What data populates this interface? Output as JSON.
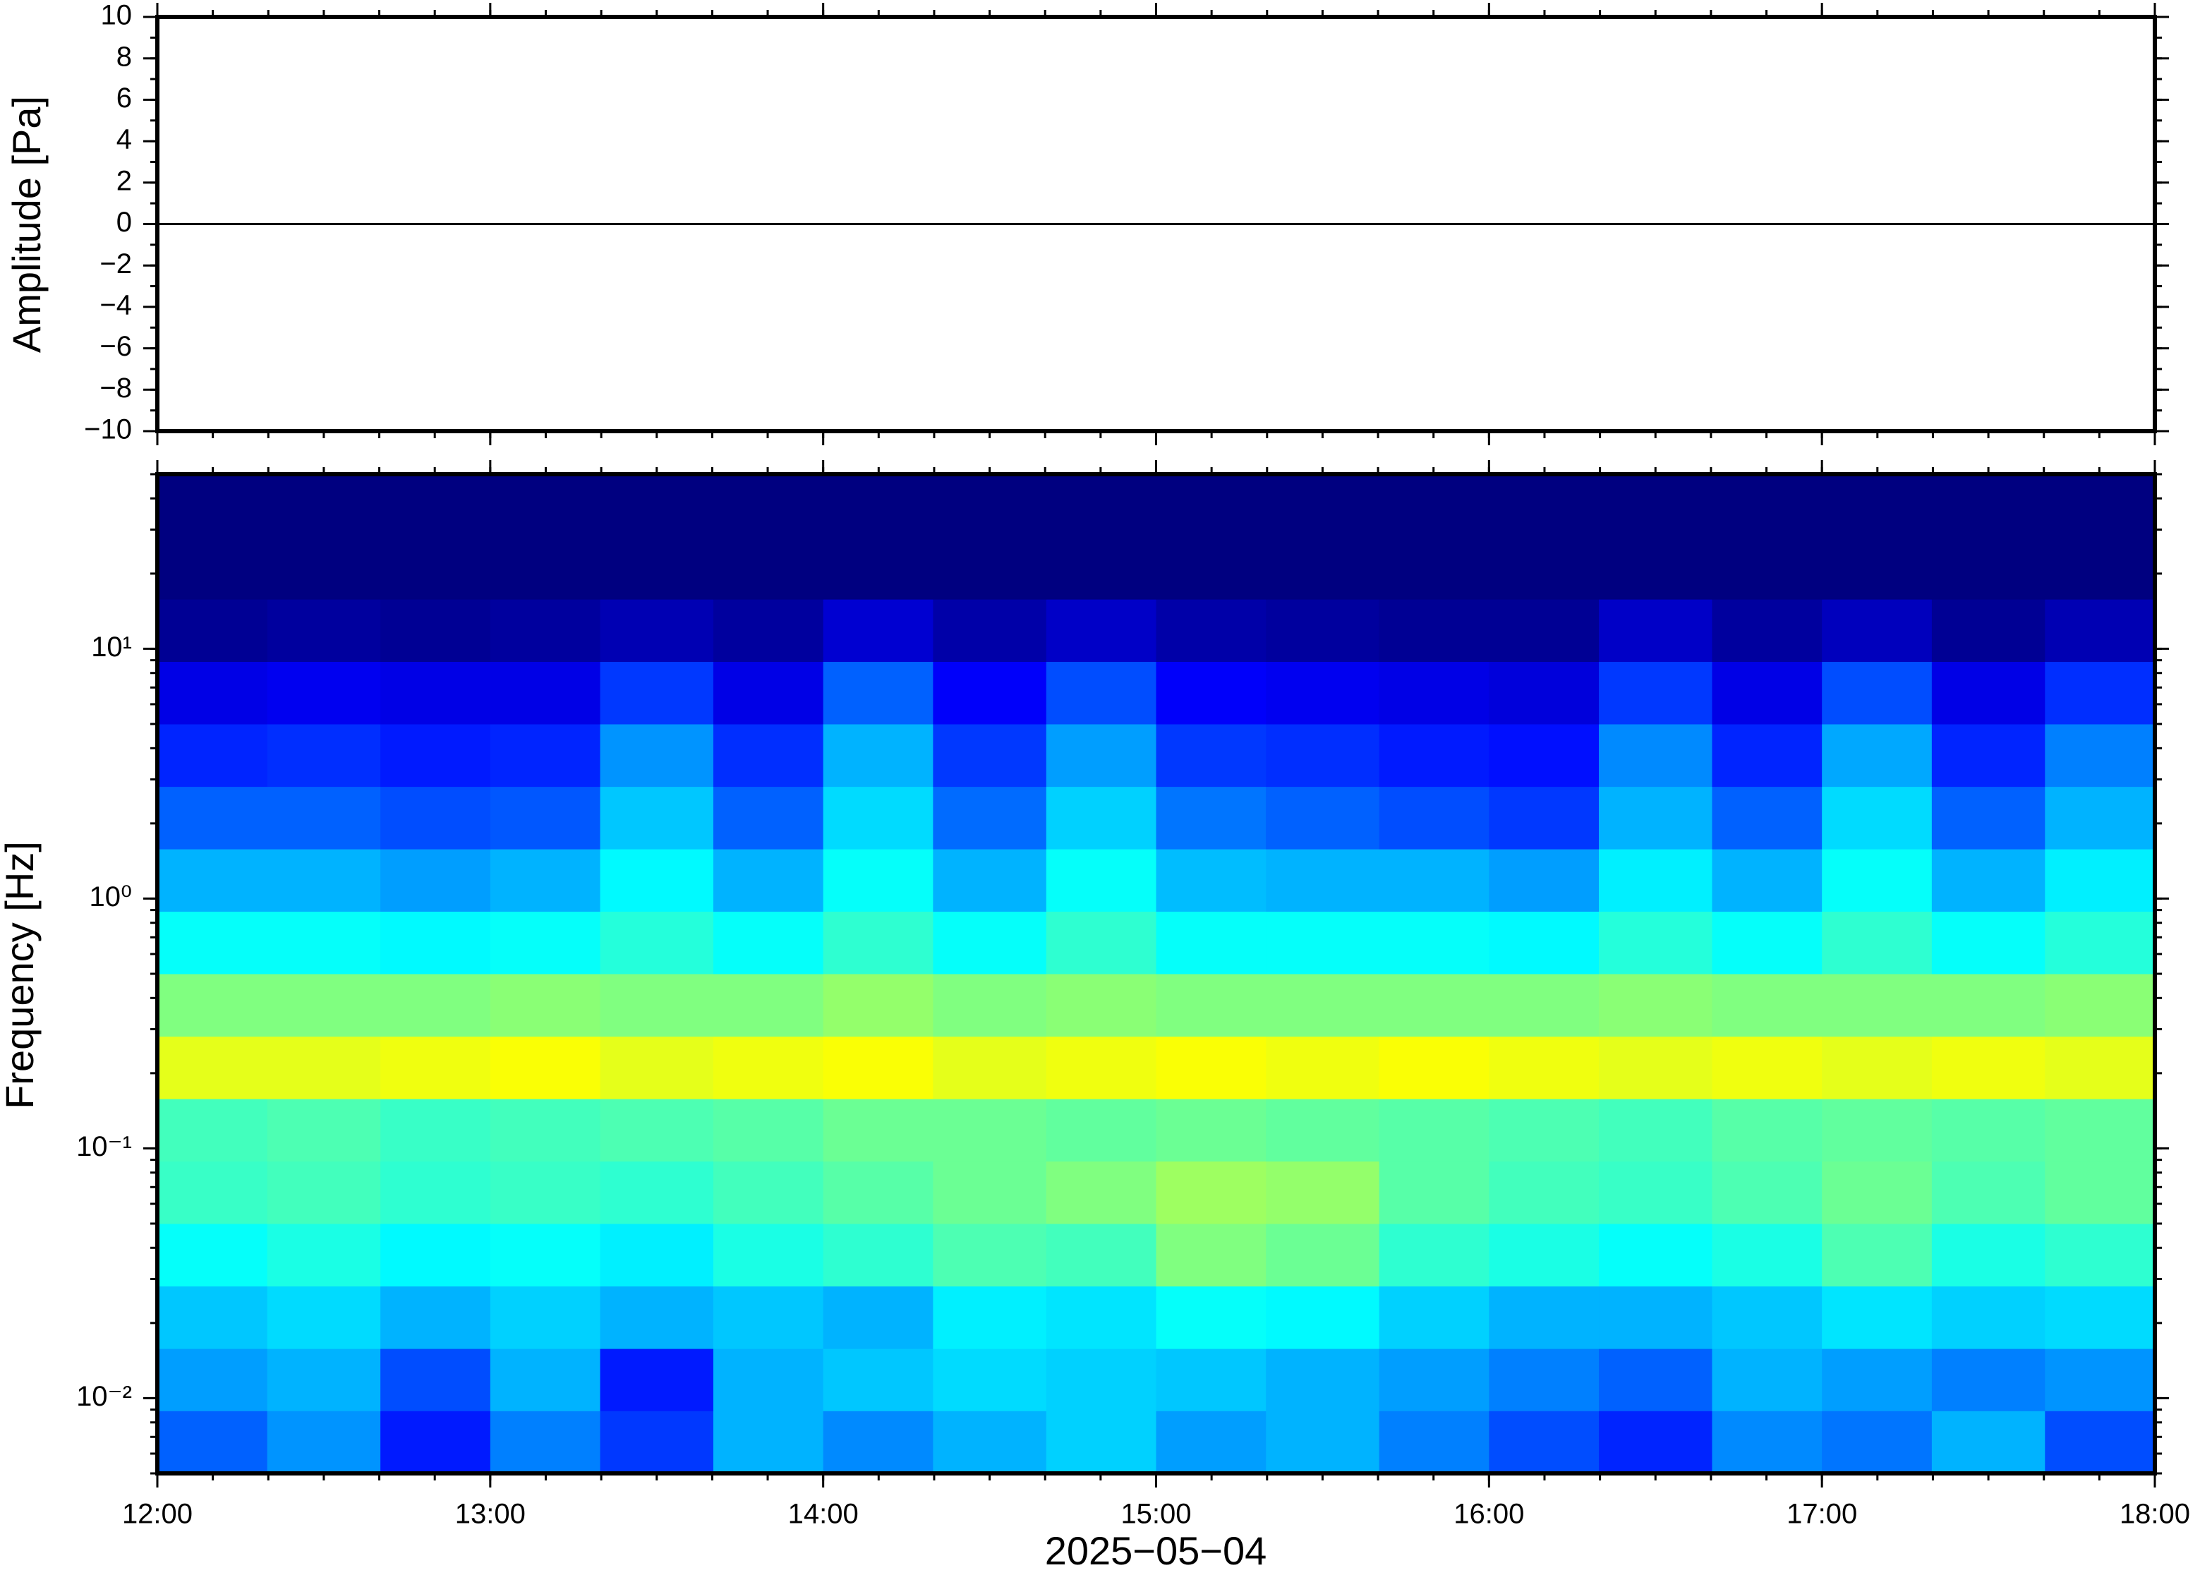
{
  "chart_data": [
    {
      "type": "line",
      "ylabel": "Amplitude [Pa]",
      "x": [
        12,
        13,
        14,
        15,
        16,
        17,
        18
      ],
      "series": [
        {
          "color": "#000000",
          "values": [
            0,
            0,
            0,
            0,
            0,
            0,
            0
          ]
        }
      ],
      "xlim": [
        12,
        18
      ],
      "xticks": [
        {
          "value": 12,
          "label": "12:00"
        },
        {
          "value": 13,
          "label": "13:00"
        },
        {
          "value": 14,
          "label": "14:00"
        },
        {
          "value": 15,
          "label": "15:00"
        },
        {
          "value": 16,
          "label": "16:00"
        },
        {
          "value": 17,
          "label": "17:00"
        },
        {
          "value": 18,
          "label": "18:00"
        }
      ],
      "ylim": [
        -10,
        10
      ],
      "yticks": [
        {
          "value": -10,
          "label": "−10"
        },
        {
          "value": -8,
          "label": "−8"
        },
        {
          "value": -6,
          "label": "−6"
        },
        {
          "value": -4,
          "label": "−4"
        },
        {
          "value": -2,
          "label": "−2"
        },
        0,
        2,
        4,
        6,
        8,
        10
      ]
    },
    {
      "type": "heatmap",
      "ylabel": "Frequency [Hz]",
      "xlabel": "2025−05−04",
      "colormap": "jet",
      "log_y": true,
      "xbins": [
        12,
        12.33,
        12.67,
        13,
        13.33,
        13.67,
        14,
        14.33,
        14.67,
        15,
        15.33,
        15.67,
        16,
        16.33,
        16.67,
        17,
        17.33,
        17.67,
        18
      ],
      "ybins": [
        0.005,
        0.0089,
        0.0158,
        0.0281,
        0.05,
        0.0889,
        0.158,
        0.281,
        0.5,
        0.889,
        1.58,
        2.81,
        5,
        8.89,
        15.8,
        28.1,
        50
      ],
      "z": [
        [
          0.22,
          0.27,
          0.15,
          0.25,
          0.18,
          0.3,
          0.26,
          0.3,
          0.33,
          0.28,
          0.3,
          0.25,
          0.2,
          0.16,
          0.26,
          0.24,
          0.3,
          0.2
        ],
        [
          0.28,
          0.3,
          0.2,
          0.3,
          0.15,
          0.3,
          0.32,
          0.34,
          0.33,
          0.32,
          0.3,
          0.28,
          0.25,
          0.22,
          0.3,
          0.28,
          0.25,
          0.27
        ],
        [
          0.32,
          0.34,
          0.3,
          0.33,
          0.3,
          0.32,
          0.3,
          0.36,
          0.35,
          0.38,
          0.37,
          0.33,
          0.3,
          0.3,
          0.32,
          0.35,
          0.33,
          0.34
        ],
        [
          0.38,
          0.4,
          0.37,
          0.38,
          0.36,
          0.4,
          0.42,
          0.45,
          0.44,
          0.5,
          0.48,
          0.42,
          0.4,
          0.38,
          0.4,
          0.45,
          0.4,
          0.42
        ],
        [
          0.43,
          0.44,
          0.42,
          0.43,
          0.42,
          0.44,
          0.46,
          0.48,
          0.5,
          0.53,
          0.52,
          0.46,
          0.44,
          0.43,
          0.45,
          0.48,
          0.45,
          0.47
        ],
        [
          0.44,
          0.45,
          0.43,
          0.44,
          0.45,
          0.46,
          0.48,
          0.48,
          0.47,
          0.48,
          0.47,
          0.46,
          0.45,
          0.44,
          0.46,
          0.47,
          0.46,
          0.47
        ],
        [
          0.6,
          0.6,
          0.61,
          0.62,
          0.6,
          0.61,
          0.62,
          0.6,
          0.61,
          0.62,
          0.61,
          0.62,
          0.61,
          0.6,
          0.61,
          0.6,
          0.61,
          0.6
        ],
        [
          0.5,
          0.5,
          0.5,
          0.51,
          0.5,
          0.5,
          0.52,
          0.5,
          0.51,
          0.5,
          0.5,
          0.5,
          0.5,
          0.51,
          0.5,
          0.5,
          0.5,
          0.51
        ],
        [
          0.38,
          0.38,
          0.37,
          0.38,
          0.41,
          0.38,
          0.42,
          0.38,
          0.42,
          0.38,
          0.38,
          0.38,
          0.37,
          0.41,
          0.38,
          0.42,
          0.38,
          0.41
        ],
        [
          0.3,
          0.3,
          0.28,
          0.3,
          0.37,
          0.3,
          0.38,
          0.3,
          0.38,
          0.31,
          0.3,
          0.3,
          0.28,
          0.36,
          0.3,
          0.38,
          0.3,
          0.36
        ],
        [
          0.22,
          0.22,
          0.2,
          0.21,
          0.32,
          0.22,
          0.34,
          0.23,
          0.33,
          0.24,
          0.22,
          0.2,
          0.18,
          0.3,
          0.22,
          0.34,
          0.22,
          0.3
        ],
        [
          0.16,
          0.17,
          0.15,
          0.16,
          0.27,
          0.17,
          0.3,
          0.18,
          0.28,
          0.18,
          0.17,
          0.15,
          0.14,
          0.26,
          0.16,
          0.29,
          0.16,
          0.25
        ],
        [
          0.1,
          0.11,
          0.1,
          0.1,
          0.18,
          0.1,
          0.22,
          0.12,
          0.2,
          0.12,
          0.11,
          0.1,
          0.09,
          0.18,
          0.1,
          0.2,
          0.1,
          0.17
        ],
        [
          0.02,
          0.03,
          0.02,
          0.03,
          0.05,
          0.03,
          0.08,
          0.04,
          0.07,
          0.04,
          0.03,
          0.02,
          0.02,
          0.07,
          0.03,
          0.06,
          0.02,
          0.05
        ],
        [
          0,
          0,
          0,
          0,
          0,
          0,
          0,
          0,
          0,
          0,
          0,
          0,
          0,
          0,
          0,
          0,
          0,
          0
        ],
        [
          0,
          0,
          0,
          0,
          0,
          0,
          0,
          0,
          0,
          0,
          0,
          0,
          0,
          0,
          0,
          0,
          0,
          0
        ]
      ],
      "xlim": [
        12,
        18
      ],
      "xticks": [
        {
          "value": 12,
          "label": "12:00"
        },
        {
          "value": 13,
          "label": "13:00"
        },
        {
          "value": 14,
          "label": "14:00"
        },
        {
          "value": 15,
          "label": "15:00"
        },
        {
          "value": 16,
          "label": "16:00"
        },
        {
          "value": 17,
          "label": "17:00"
        },
        {
          "value": 18,
          "label": "18:00"
        }
      ],
      "ylim": [
        0.005,
        50
      ],
      "yticks": [
        {
          "value": 0.01,
          "label": "10⁻²"
        },
        {
          "value": 0.1,
          "label": "10⁻¹"
        },
        {
          "value": 1,
          "label": "10⁰"
        },
        {
          "value": 10,
          "label": "10¹"
        }
      ]
    }
  ]
}
